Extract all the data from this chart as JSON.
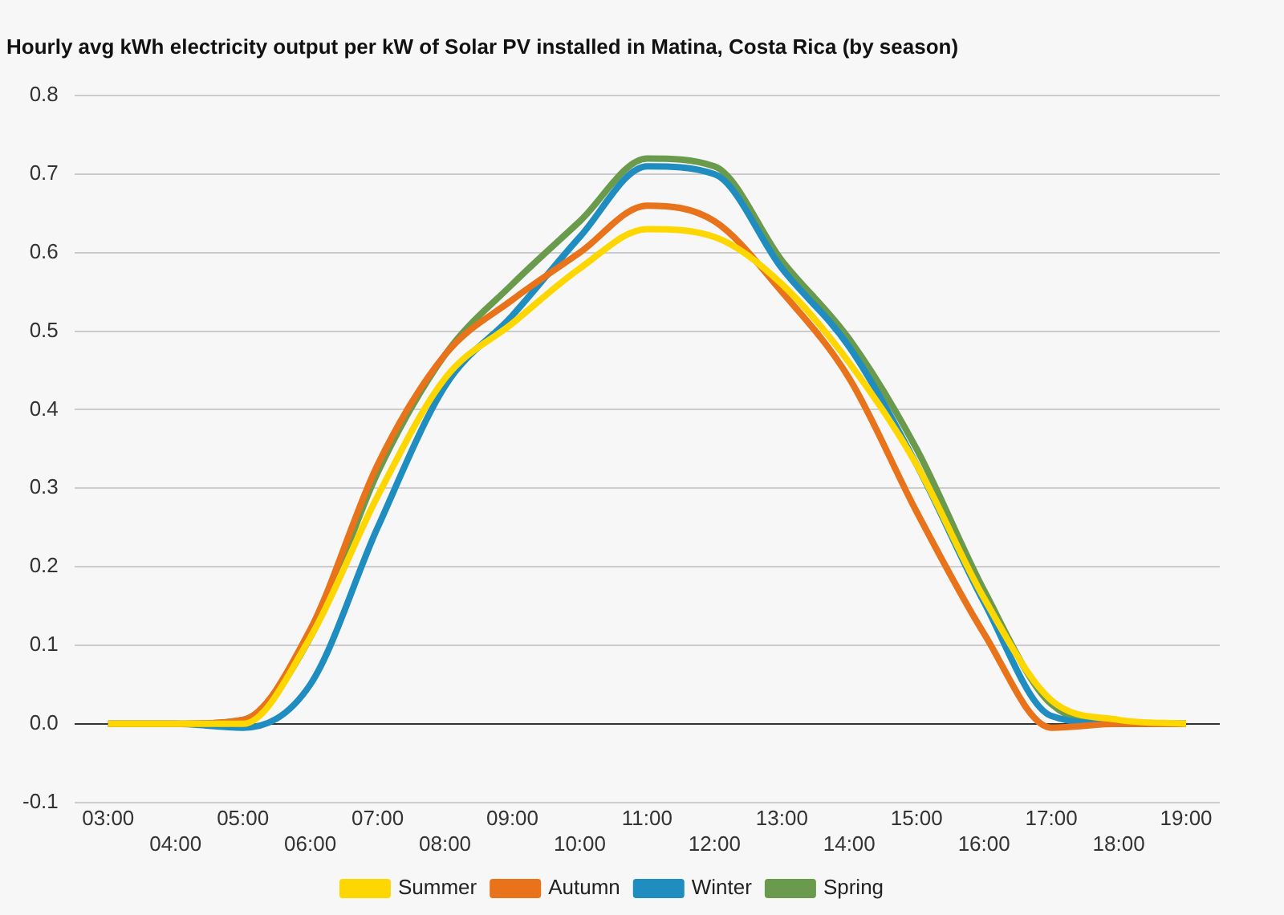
{
  "chart_data": {
    "type": "line",
    "title": "Hourly avg kWh electricity output per kW of Solar PV installed in Matina, Costa Rica (by season)",
    "categories": [
      "03:00",
      "04:00",
      "05:00",
      "06:00",
      "07:00",
      "08:00",
      "09:00",
      "10:00",
      "11:00",
      "12:00",
      "13:00",
      "14:00",
      "15:00",
      "16:00",
      "17:00",
      "18:00",
      "19:00"
    ],
    "series": [
      {
        "name": "Summer",
        "color": "#ffd700",
        "values": [
          0,
          0,
          0,
          0.11,
          0.29,
          0.44,
          0.51,
          0.58,
          0.63,
          0.62,
          0.56,
          0.46,
          0.33,
          0.16,
          0.03,
          0.005,
          0
        ]
      },
      {
        "name": "Autumn",
        "color": "#e8731a",
        "values": [
          0,
          0,
          0.005,
          0.12,
          0.33,
          0.47,
          0.54,
          0.6,
          0.66,
          0.64,
          0.55,
          0.44,
          0.27,
          0.115,
          -0.005,
          0,
          0
        ]
      },
      {
        "name": "Winter",
        "color": "#1f8dc0",
        "values": [
          0,
          0,
          -0.005,
          0.05,
          0.25,
          0.43,
          0.52,
          0.62,
          0.71,
          0.7,
          0.58,
          0.48,
          0.33,
          0.155,
          0.01,
          0,
          0
        ]
      },
      {
        "name": "Spring",
        "color": "#6a9a4c",
        "values": [
          0,
          0,
          0.005,
          0.11,
          0.32,
          0.47,
          0.56,
          0.64,
          0.72,
          0.71,
          0.59,
          0.49,
          0.35,
          0.17,
          0.025,
          0,
          0
        ]
      }
    ],
    "ylim": [
      -0.1,
      0.8
    ],
    "yticks": [
      -0.1,
      {
        "value": 0,
        "label": "0.0"
      },
      0.1,
      0.2,
      0.3,
      0.4,
      0.5,
      0.6,
      0.7,
      0.8
    ],
    "grid": "y",
    "legend": "bottom",
    "marker": "none",
    "line_style": "solid"
  }
}
